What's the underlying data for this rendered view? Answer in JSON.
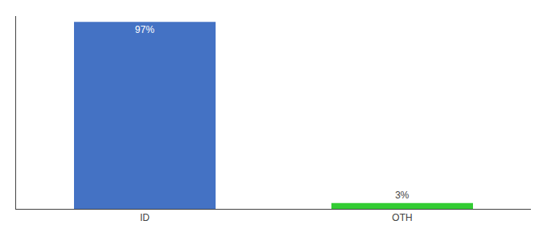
{
  "chart_data": {
    "type": "bar",
    "categories": [
      "ID",
      "OTH"
    ],
    "values": [
      97,
      3
    ],
    "value_labels": [
      "97%",
      "3%"
    ],
    "data_labels": true,
    "colors": [
      "#4472c4",
      "#33cc33"
    ],
    "ylim": [
      0,
      100
    ],
    "grid": false,
    "tick_labels": "x"
  }
}
